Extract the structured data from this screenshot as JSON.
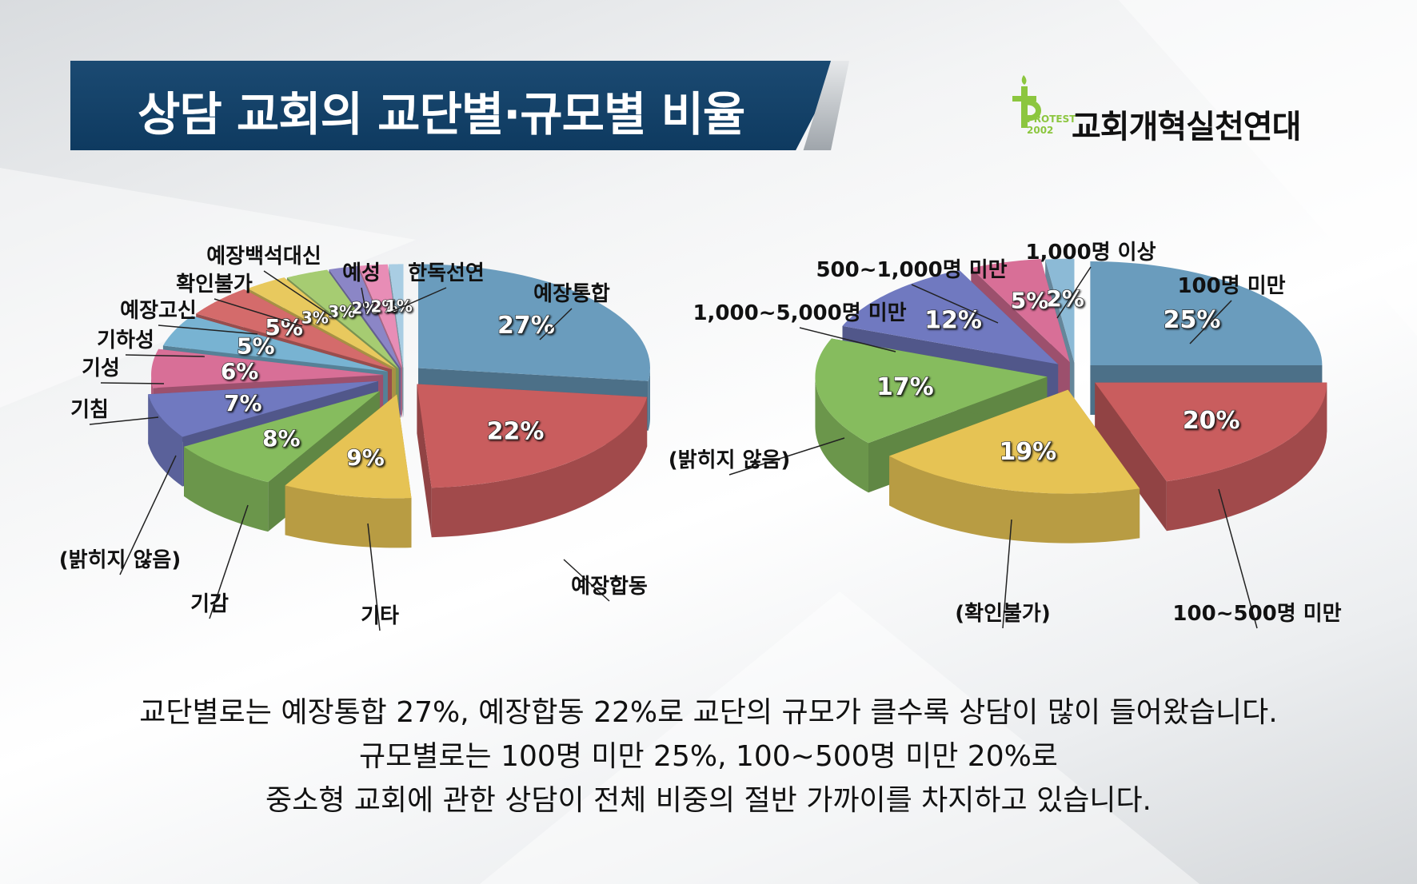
{
  "title": "상담 교회의 교단별·규모별 비율",
  "logo": {
    "text": "교회개혁실천연대",
    "small1": "PROTEST",
    "small2": "2002",
    "accent": "#8cc63f"
  },
  "description": [
    "교단별로는 예장통합 27%, 예장합동 22%로 교단의 규모가 클수록 상담이 많이 들어왔습니다.",
    "규모별로는 100명 미만 25%, 100~500명 미만 20%로",
    "중소형 교회에 관한 상담이 전체 비중의 절반 가까이를 차지하고 있습니다."
  ],
  "chart_data": [
    {
      "type": "pie",
      "categories": [
        "예장통합",
        "예장합동",
        "기타",
        "기감",
        "(밝히지 않음)",
        "기침",
        "기성",
        "기하성",
        "예장고신",
        "확인불가",
        "예장백석대신",
        "예성",
        "한독선연"
      ],
      "values": [
        27,
        22,
        9,
        8,
        7,
        6,
        5,
        5,
        3,
        3,
        2,
        2,
        1
      ],
      "labels": [
        "27%",
        "22%",
        "9%",
        "8%",
        "7%",
        "6%",
        "5%",
        "5%",
        "3%",
        "3%",
        "2%",
        "2%",
        "1%"
      ],
      "colors": [
        "#6a9cbd",
        "#c95d5e",
        "#e6c354",
        "#86bc5e",
        "#7079c0",
        "#d86f97",
        "#78b3d2",
        "#d46b6b",
        "#e8c95e",
        "#a6cc72",
        "#8b86c6",
        "#e88db6",
        "#a9cde3"
      ]
    },
    {
      "type": "pie",
      "categories": [
        "100명 미만",
        "100~500명 미만",
        "(확인불가)",
        "(밝히지 않음)",
        "1,000~5,000명 미만",
        "500~1,000명 미만",
        "1,000명 이상"
      ],
      "values": [
        25,
        20,
        19,
        17,
        12,
        5,
        2
      ],
      "labels": [
        "25%",
        "20%",
        "19%",
        "17%",
        "12%",
        "5%",
        "2%"
      ],
      "colors": [
        "#6a9cbd",
        "#c95d5e",
        "#e6c354",
        "#86bc5e",
        "#7079c0",
        "#d86f97",
        "#8cbad6"
      ]
    }
  ]
}
